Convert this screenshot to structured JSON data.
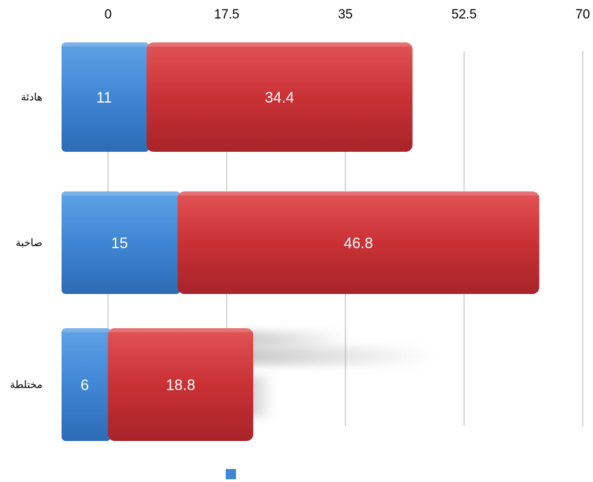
{
  "chart_data": {
    "type": "bar",
    "orientation": "horizontal",
    "stacked": true,
    "categories": [
      "هادئة",
      "صاخبة",
      "مختلطة"
    ],
    "series": [
      {
        "values": [
          11,
          15,
          6
        ],
        "color": "#3f86d4"
      },
      {
        "values": [
          34.4,
          46.8,
          18.8
        ],
        "color": "#c93135"
      }
    ],
    "x_axis": {
      "position": "top",
      "ticks": [
        "0",
        "17.5",
        "35",
        "52.5",
        "70"
      ],
      "range": [
        0,
        70
      ]
    },
    "grid": true,
    "legend": {
      "placement": "bottom"
    },
    "data_labels": {
      "series_0": [
        "11",
        "15",
        "6"
      ],
      "series_1": [
        "34.4",
        "46.8",
        "18.8"
      ]
    }
  }
}
